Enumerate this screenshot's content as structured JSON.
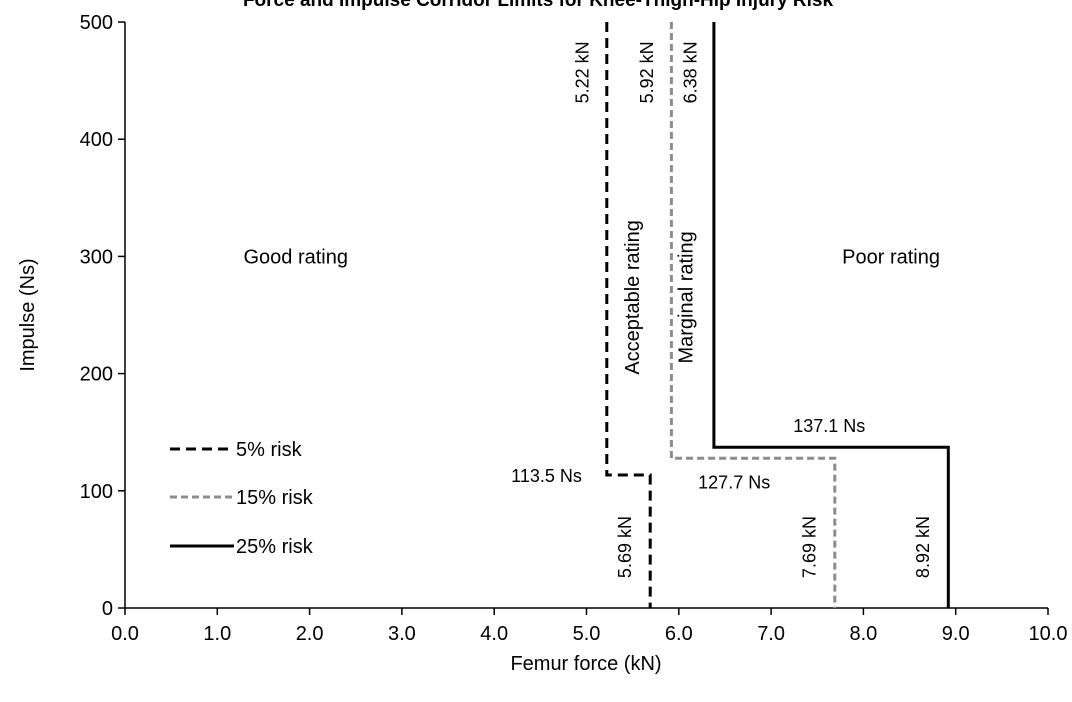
{
  "chart_data": {
    "type": "line",
    "title": "Force and Impulse Corridor Limits for Knee-Thigh-Hip Injury Risk",
    "xlabel": "Femur force (kN)",
    "ylabel": "Impulse (Ns)",
    "xlim": [
      0,
      10
    ],
    "ylim": [
      0,
      500
    ],
    "xticks": [
      "0.0",
      "1.0",
      "2.0",
      "3.0",
      "4.0",
      "5.0",
      "6.0",
      "7.0",
      "8.0",
      "9.0",
      "10.0"
    ],
    "yticks": [
      "0",
      "100",
      "200",
      "300",
      "400",
      "500"
    ],
    "grid": false,
    "legend_position": "left",
    "series": [
      {
        "name": "5% risk",
        "style": "dashed",
        "color": "#000000",
        "x": [
          5.22,
          5.22,
          5.69,
          5.69
        ],
        "y": [
          500,
          113.5,
          113.5,
          0
        ]
      },
      {
        "name": "15% risk",
        "style": "dashed",
        "color": "#8c8c8c",
        "x": [
          5.92,
          5.92,
          7.69,
          7.69
        ],
        "y": [
          500,
          127.7,
          127.7,
          0
        ]
      },
      {
        "name": "25% risk",
        "style": "solid",
        "color": "#000000",
        "x": [
          6.38,
          6.38,
          8.92,
          8.92
        ],
        "y": [
          500,
          137.1,
          137.1,
          0
        ]
      }
    ],
    "annotations": [
      {
        "text": "Good rating",
        "x": 1.85,
        "y": 300,
        "rotate": 0,
        "anchor": "middle"
      },
      {
        "text": "Poor rating",
        "x": 8.3,
        "y": 300,
        "rotate": 0,
        "anchor": "middle"
      },
      {
        "text": "Acceptable rating",
        "x": 5.57,
        "y": 265,
        "rotate": -90,
        "anchor": "middle"
      },
      {
        "text": "Marginal rating",
        "x": 6.15,
        "y": 265,
        "rotate": -90,
        "anchor": "middle"
      },
      {
        "text": "5.22 kN",
        "x": 5.02,
        "y": 457,
        "rotate": -90,
        "anchor": "middle"
      },
      {
        "text": "5.92 kN",
        "x": 5.72,
        "y": 457,
        "rotate": -90,
        "anchor": "middle"
      },
      {
        "text": "6.38 kN",
        "x": 6.19,
        "y": 457,
        "rotate": -90,
        "anchor": "middle"
      },
      {
        "text": "5.69 kN",
        "x": 5.48,
        "y": 52,
        "rotate": -90,
        "anchor": "middle"
      },
      {
        "text": "7.69 kN",
        "x": 7.48,
        "y": 52,
        "rotate": -90,
        "anchor": "middle"
      },
      {
        "text": "8.92 kN",
        "x": 8.71,
        "y": 52,
        "rotate": -90,
        "anchor": "middle"
      },
      {
        "text": "113.5 Ns",
        "x": 4.95,
        "y": 113.5,
        "rotate": 0,
        "anchor": "end"
      },
      {
        "text": "127.7 Ns",
        "x": 6.6,
        "y": 108,
        "rotate": 0,
        "anchor": "middle"
      },
      {
        "text": "137.1 Ns",
        "x": 7.63,
        "y": 156,
        "rotate": 0,
        "anchor": "middle"
      }
    ]
  }
}
